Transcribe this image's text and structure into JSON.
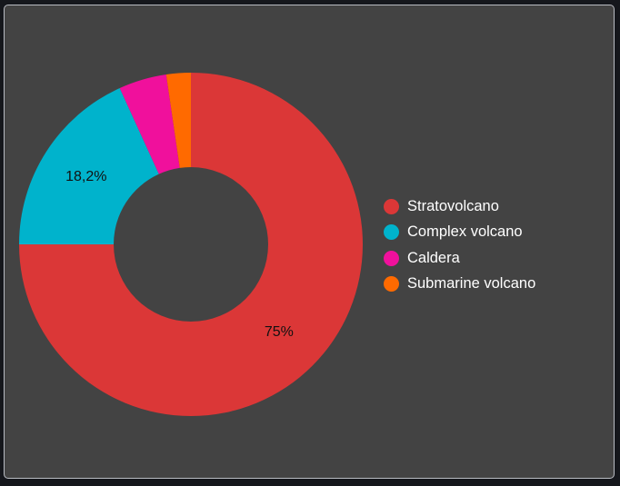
{
  "chart_data": {
    "type": "pie",
    "variant": "donut",
    "categories": [
      "Stratovolcano",
      "Complex volcano",
      "Caldera",
      "Submarine volcano"
    ],
    "values": [
      75,
      18.2,
      4.5,
      2.3
    ],
    "labels": [
      "75%",
      "18,2%",
      "",
      ""
    ],
    "colors": [
      "#db3737",
      "#00b3cc",
      "#f0109c",
      "#ff6a00"
    ],
    "legend_position": "right",
    "title": ""
  }
}
